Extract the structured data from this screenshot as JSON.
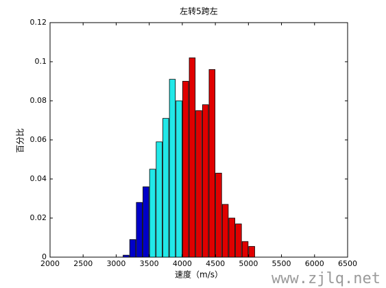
{
  "chart_data": {
    "type": "histogram",
    "title": "左转5跨左",
    "x_label": "速度（m/s）",
    "y_label": "百分比",
    "bins": [
      3100,
      3200,
      3300,
      3400,
      3500,
      3600,
      3700,
      3800,
      3900,
      4000,
      4100,
      4200,
      4300,
      4400,
      4500,
      4600,
      4700,
      4800,
      4900,
      5000,
      5100
    ],
    "values": [
      0.001,
      0.009,
      0.028,
      0.036,
      0.045,
      0.059,
      0.071,
      0.091,
      0.08,
      0.09,
      0.102,
      0.075,
      0.078,
      0.096,
      0.043,
      0.027,
      0.02,
      0.017,
      0.008,
      0.0055
    ],
    "colors": [
      "#0000c8",
      "#0000c8",
      "#0000c8",
      "#0000c8",
      "#22e8e8",
      "#22e8e8",
      "#22e8e8",
      "#22e8e8",
      "#22e8e8",
      "#e00000",
      "#e00000",
      "#e00000",
      "#e00000",
      "#e00000",
      "#e00000",
      "#e00000",
      "#e00000",
      "#e00000",
      "#e00000",
      "#e00000"
    ],
    "xlim": [
      2000,
      6500
    ],
    "xticks": [
      2000,
      2500,
      3000,
      3500,
      4000,
      4500,
      5000,
      5500,
      6000,
      6500
    ],
    "ylim": [
      0,
      0.12
    ],
    "yticks": [
      0,
      0.02,
      0.04,
      0.06,
      0.08,
      0.1,
      0.12
    ]
  },
  "watermark": "www.zjlq.net"
}
